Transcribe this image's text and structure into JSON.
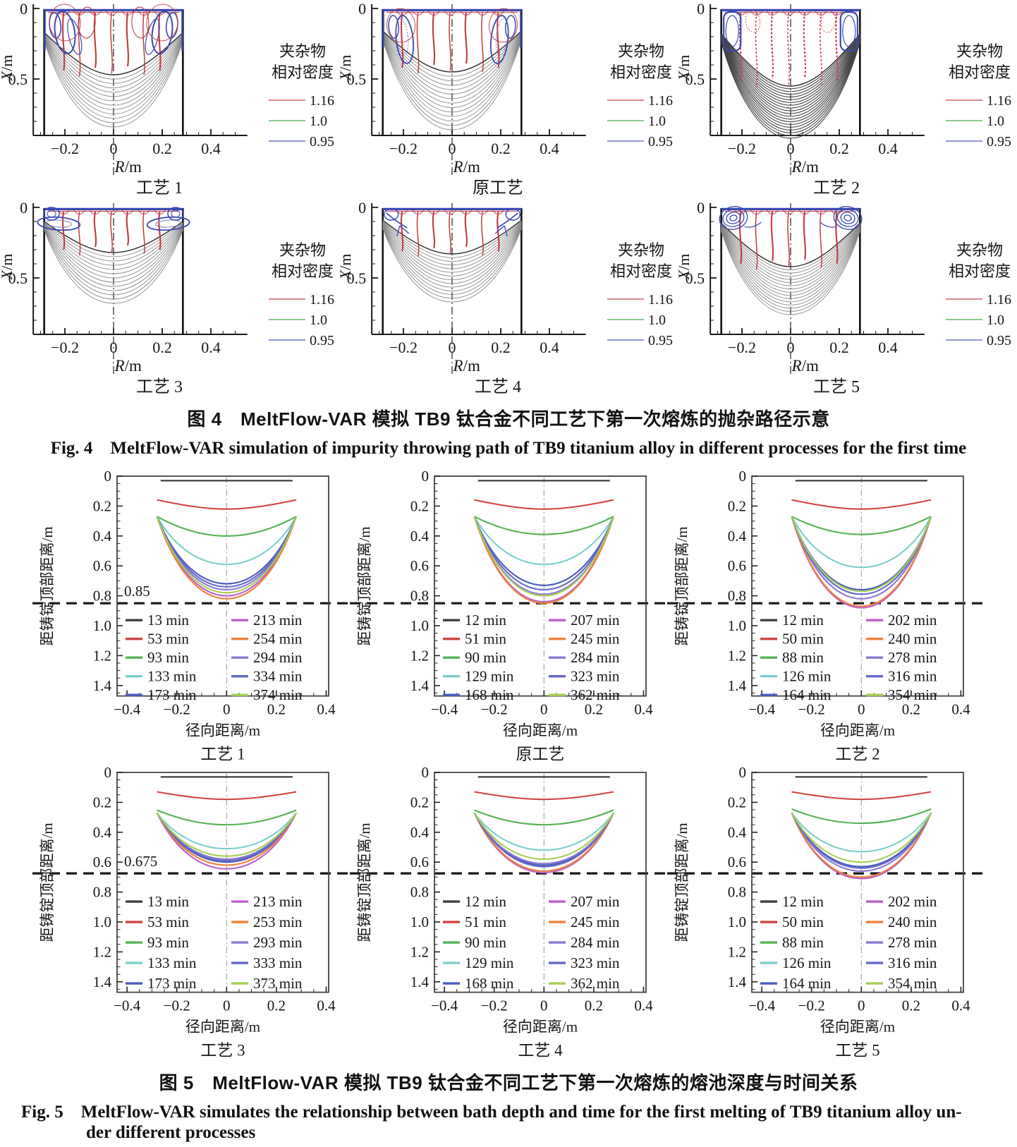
{
  "chart_data": [
    {
      "type": "line",
      "figure_id": "fig4",
      "caption_zh": "图 4　MeltFlow-VAR 模拟 TB9 钛合金不同工艺下第一次熔炼的抛杂路径示意",
      "caption_en": "Fig. 4　MeltFlow-VAR simulation of impurity throwing path of TB9 titanium alloy in different processes for the first time",
      "xlabel_var": "R",
      "xlabel_unit": "/m",
      "ylabel_var": "X",
      "ylabel_unit": "/m",
      "x_range": [
        -0.33,
        0.55
      ],
      "y_range": [
        0,
        0.9
      ],
      "x_tick_values": [
        -0.2,
        0,
        0.2,
        0.4
      ],
      "x_tick_labels": [
        "−0.2",
        "0",
        "0.2",
        "0.4"
      ],
      "y_tick_values": [
        0,
        0.5
      ],
      "y_tick_labels": [
        "0",
        "0.5"
      ],
      "crucible_wall_x": 0.285,
      "legend_title_line1": "夹杂物",
      "legend_title_line2": "相对密度",
      "legend": [
        {
          "label": "1.16",
          "color": "#dd8a8e",
          "meaning": "inclusion relative density 1.16"
        },
        {
          "label": "1.0",
          "color": "#8cc98c",
          "meaning": "inclusion relative density 1.0"
        },
        {
          "label": "0.95",
          "color": "#9397d8",
          "meaning": "inclusion relative density 0.95"
        }
      ],
      "panels": [
        {
          "title": "工艺 1",
          "corner_style": "large1",
          "red_end": 0.44,
          "red_dash": false,
          "pool": {
            "count": 13,
            "first_depth": 0.47,
            "last_depth": 0.84,
            "edge_y": 0.17,
            "dark": false
          }
        },
        {
          "title": "原工艺",
          "corner_style": "large2",
          "red_end": 0.42,
          "red_dash": false,
          "pool": {
            "count": 14,
            "first_depth": 0.45,
            "last_depth": 0.86,
            "edge_y": 0.16,
            "dark": false
          }
        },
        {
          "title": "工艺 2",
          "corner_style": "dense",
          "red_end": 0.52,
          "red_dash": true,
          "pool": {
            "count": 20,
            "first_depth": 0.55,
            "last_depth": 0.92,
            "edge_y": 0.18,
            "dark": true
          }
        },
        {
          "title": "工艺 3",
          "corner_style": "small",
          "red_end": 0.3,
          "red_dash": false,
          "pool": {
            "count": 13,
            "first_depth": 0.32,
            "last_depth": 0.68,
            "edge_y": 0.1,
            "dark": false
          }
        },
        {
          "title": "工艺 4",
          "corner_style": "swirl",
          "red_end": 0.31,
          "red_dash": false,
          "pool": {
            "count": 14,
            "first_depth": 0.33,
            "last_depth": 0.67,
            "edge_y": 0.09,
            "dark": false
          }
        },
        {
          "title": "工艺 5",
          "corner_style": "rings",
          "red_end": 0.4,
          "red_dash": false,
          "pool": {
            "count": 16,
            "first_depth": 0.42,
            "last_depth": 0.76,
            "edge_y": 0.11,
            "dark": false
          }
        }
      ]
    },
    {
      "type": "line",
      "figure_id": "fig5",
      "caption_zh": "图 5　MeltFlow-VAR 模拟 TB9 钛合金不同工艺下第一次熔炼的熔池深度与时间关系",
      "caption_en_line1": "Fig. 5　MeltFlow-VAR simulates the relationship between bath depth and time for the first melting of TB9 titanium alloy un-",
      "caption_en_line2": "der different processes",
      "xlabel": "径向距离/m",
      "ylabel": "距铸锭顶部距离/m",
      "x_range": [
        -0.44,
        0.41
      ],
      "y_range": [
        0,
        1.47
      ],
      "x_tick_values": [
        -0.4,
        -0.2,
        0,
        0.2,
        0.4
      ],
      "x_tick_labels": [
        "−0.4",
        "−0.2",
        "0",
        "0.2",
        "0.4"
      ],
      "y_tick_values": [
        0,
        0.2,
        0.4,
        0.6,
        0.8,
        1.0,
        1.2,
        1.4
      ],
      "y_tick_labels": [
        "0",
        "0.2",
        "0.4",
        "0.6",
        "0.8",
        "1.0",
        "1.2",
        "1.4"
      ],
      "crucible_wall_x": 0.28,
      "series_colors": [
        "#3f3f3f",
        "#d2413f",
        "#55b255",
        "#7bcfcb",
        "#4a5bbf",
        "#bb5fc8",
        "#f08039",
        "#8b79cf",
        "#6569c8",
        "#a6cf52"
      ],
      "panels": [
        {
          "title": "工艺 1",
          "dashed_line_y": 0.85,
          "max_depth_annotation": "0.85",
          "series": [
            {
              "label": "13 min",
              "depth_m": 0.03
            },
            {
              "label": "53 min",
              "depth_m": 0.22
            },
            {
              "label": "93 min",
              "depth_m": 0.4
            },
            {
              "label": "133 min",
              "depth_m": 0.59
            },
            {
              "label": "173 min",
              "depth_m": 0.72
            },
            {
              "label": "213 min",
              "depth_m": 0.8
            },
            {
              "label": "254 min",
              "depth_m": 0.82
            },
            {
              "label": "294 min",
              "depth_m": 0.76
            },
            {
              "label": "334 min",
              "depth_m": 0.74
            },
            {
              "label": "374 min",
              "depth_m": 0.78
            }
          ]
        },
        {
          "title": "原工艺",
          "dashed_line_y": 0.85,
          "max_depth_annotation": "",
          "series": [
            {
              "label": "12 min",
              "depth_m": 0.03
            },
            {
              "label": "51 min",
              "depth_m": 0.22
            },
            {
              "label": "90 min",
              "depth_m": 0.39
            },
            {
              "label": "129 min",
              "depth_m": 0.59
            },
            {
              "label": "168 min",
              "depth_m": 0.73
            },
            {
              "label": "207 min",
              "depth_m": 0.84
            },
            {
              "label": "245 min",
              "depth_m": 0.85
            },
            {
              "label": "284 min",
              "depth_m": 0.79
            },
            {
              "label": "323 min",
              "depth_m": 0.76
            },
            {
              "label": "362 min",
              "depth_m": 0.8
            }
          ]
        },
        {
          "title": "工艺 2",
          "dashed_line_y": 0.85,
          "max_depth_annotation": "",
          "series": [
            {
              "label": "12 min",
              "depth_m": 0.03
            },
            {
              "label": "50 min",
              "depth_m": 0.22
            },
            {
              "label": "88 min",
              "depth_m": 0.39
            },
            {
              "label": "126 min",
              "depth_m": 0.61
            },
            {
              "label": "164 min",
              "depth_m": 0.76
            },
            {
              "label": "202 min",
              "depth_m": 0.88
            },
            {
              "label": "240 min",
              "depth_m": 0.87
            },
            {
              "label": "278 min",
              "depth_m": 0.82
            },
            {
              "label": "316 min",
              "depth_m": 0.79
            },
            {
              "label": "354 min",
              "depth_m": 0.77
            }
          ]
        },
        {
          "title": "工艺 3",
          "dashed_line_y": 0.675,
          "max_depth_annotation": "0.675",
          "series": [
            {
              "label": "13 min",
              "depth_m": 0.03
            },
            {
              "label": "53 min",
              "depth_m": 0.18
            },
            {
              "label": "93 min",
              "depth_m": 0.35
            },
            {
              "label": "133 min",
              "depth_m": 0.51
            },
            {
              "label": "173 min",
              "depth_m": 0.6
            },
            {
              "label": "213 min",
              "depth_m": 0.645
            },
            {
              "label": "253 min",
              "depth_m": 0.62
            },
            {
              "label": "293 min",
              "depth_m": 0.58
            },
            {
              "label": "333 min",
              "depth_m": 0.59
            },
            {
              "label": "373 min",
              "depth_m": 0.56
            }
          ]
        },
        {
          "title": "工艺 4",
          "dashed_line_y": 0.675,
          "max_depth_annotation": "",
          "series": [
            {
              "label": "12 min",
              "depth_m": 0.03
            },
            {
              "label": "51 min",
              "depth_m": 0.18
            },
            {
              "label": "90 min",
              "depth_m": 0.35
            },
            {
              "label": "129 min",
              "depth_m": 0.52
            },
            {
              "label": "168 min",
              "depth_m": 0.62
            },
            {
              "label": "207 min",
              "depth_m": 0.67
            },
            {
              "label": "245 min",
              "depth_m": 0.66
            },
            {
              "label": "284 min",
              "depth_m": 0.61
            },
            {
              "label": "323 min",
              "depth_m": 0.63
            },
            {
              "label": "362 min",
              "depth_m": 0.58
            }
          ]
        },
        {
          "title": "工艺 5",
          "dashed_line_y": 0.675,
          "max_depth_annotation": "",
          "series": [
            {
              "label": "12 min",
              "depth_m": 0.03
            },
            {
              "label": "50 min",
              "depth_m": 0.18
            },
            {
              "label": "88 min",
              "depth_m": 0.34
            },
            {
              "label": "126 min",
              "depth_m": 0.53
            },
            {
              "label": "164 min",
              "depth_m": 0.63
            },
            {
              "label": "202 min",
              "depth_m": 0.71
            },
            {
              "label": "240 min",
              "depth_m": 0.7
            },
            {
              "label": "278 min",
              "depth_m": 0.66
            },
            {
              "label": "316 min",
              "depth_m": 0.64
            },
            {
              "label": "354 min",
              "depth_m": 0.6
            }
          ]
        }
      ]
    }
  ]
}
